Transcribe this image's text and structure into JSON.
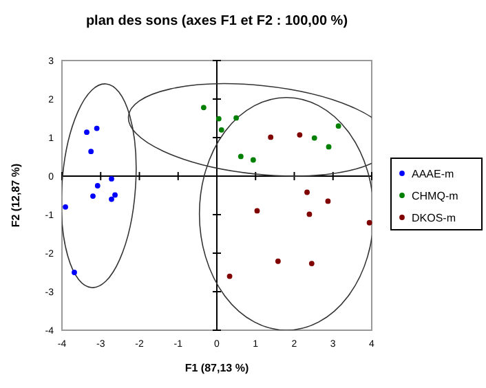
{
  "chart_data": {
    "type": "scatter",
    "title": "plan des sons (axes F1 et F2 : 100,00 %)",
    "xlabel": "F1 (87,13 %)",
    "ylabel": "F2 (12,87 %)",
    "xlim": [
      -4,
      4
    ],
    "ylim": [
      -4,
      3
    ],
    "xticks": [
      -4,
      -3,
      -2,
      -1,
      0,
      1,
      2,
      3,
      4
    ],
    "yticks": [
      -4,
      -3,
      -2,
      -1,
      0,
      1,
      2,
      3
    ],
    "legend": "right",
    "marker": "circle",
    "series": [
      {
        "name": "AAAE-m",
        "color": "#0000ff",
        "x": [
          -3.36,
          -3.1,
          -3.25,
          -2.72,
          -3.08,
          -3.2,
          -2.63,
          -2.72,
          -3.91,
          -3.68
        ],
        "values": [
          1.14,
          1.24,
          0.64,
          -0.07,
          -0.25,
          -0.52,
          -0.49,
          -0.6,
          -0.8,
          -2.5
        ]
      },
      {
        "name": "CHMQ-m",
        "color": "#008000",
        "x": [
          -0.34,
          0.05,
          0.12,
          0.5,
          0.62,
          0.94,
          2.52,
          2.89,
          3.14
        ],
        "values": [
          1.78,
          1.49,
          1.2,
          1.51,
          0.51,
          0.42,
          0.99,
          0.76,
          1.3
        ]
      },
      {
        "name": "DKOS-m",
        "color": "#800000",
        "x": [
          1.39,
          2.14,
          2.33,
          2.87,
          1.04,
          2.39,
          3.94,
          1.58,
          2.45,
          0.33
        ],
        "values": [
          1.01,
          1.07,
          -0.42,
          -0.65,
          -0.9,
          -0.99,
          -1.21,
          -2.21,
          -2.27,
          -2.6
        ]
      }
    ]
  }
}
